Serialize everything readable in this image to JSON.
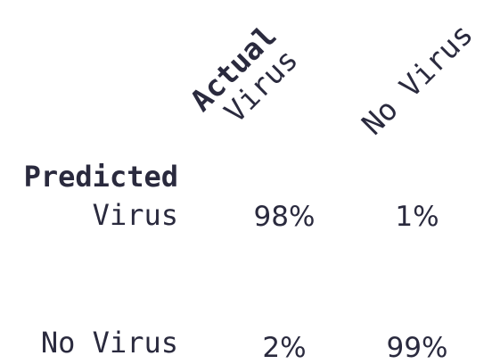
{
  "matrix": {
    "column_axis_label": "Actual",
    "row_axis_label": "Predicted",
    "columns": [
      "Virus",
      "No Virus"
    ],
    "rows": [
      {
        "label": "Virus",
        "values": [
          "98%",
          "1%"
        ]
      },
      {
        "label": "No Virus",
        "values": [
          "2%",
          "99%"
        ]
      }
    ],
    "text_color": "#2a2a3e"
  }
}
